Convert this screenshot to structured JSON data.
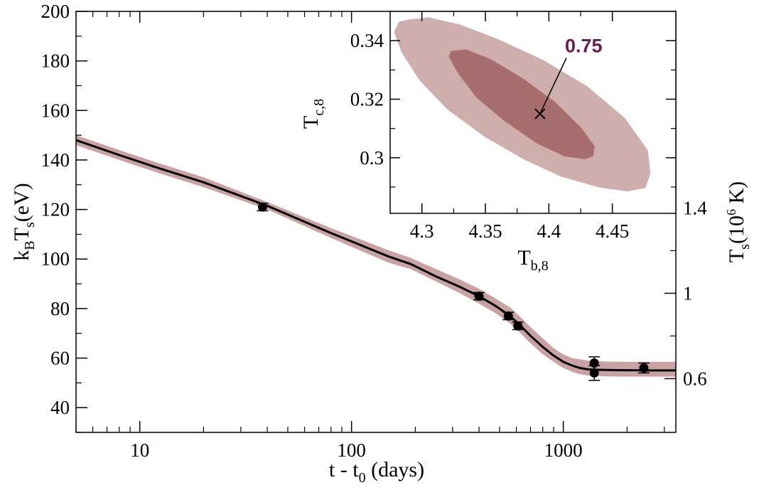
{
  "chart_data": [
    {
      "type": "line",
      "x_scale": "log",
      "xlim": [
        5,
        3400
      ],
      "ylim": [
        30,
        200
      ],
      "grid": false,
      "xlabel": {
        "main": "t - t",
        "sub": "0",
        "tail": " (days)"
      },
      "ylabel": {
        "k": "k",
        "k_sub": "B",
        "t": "T",
        "t_sub": "s",
        "tail": "(eV)"
      },
      "y2label": {
        "t": "T",
        "t_sub": "s",
        "open": "(10",
        "sup": "6",
        "tail": " K)"
      },
      "x_ticks": [
        10,
        100,
        1000
      ],
      "x_tick_labels": [
        "10",
        "100",
        "1000"
      ],
      "y_ticks": [
        40,
        60,
        80,
        100,
        120,
        140,
        160,
        180,
        200
      ],
      "y_tick_labels": [
        "40",
        "60",
        "80",
        "100",
        "120",
        "140",
        "160",
        "180",
        "200"
      ],
      "y2_ticks_keV": [
        51.7,
        86.17,
        120.6
      ],
      "y2_tick_labels": [
        "0.6",
        "1",
        "1.4"
      ],
      "colors": {
        "band": "#c9a3a3",
        "line": "#000000",
        "points": "#000000"
      },
      "model_curve": {
        "x": [
          5,
          8,
          12,
          20,
          40,
          80,
          150,
          190,
          250,
          320,
          400,
          480,
          560,
          620,
          700,
          800,
          900,
          1000,
          1100,
          1200,
          1300,
          1400,
          1600,
          2000,
          2500,
          3400
        ],
        "y": [
          148,
          142,
          137,
          131,
          121.5,
          110.5,
          101,
          98,
          93,
          89,
          85,
          81,
          77,
          73.5,
          69,
          64.5,
          61,
          58.5,
          57,
          56,
          55.5,
          55.3,
          55.2,
          55.1,
          55,
          55
        ],
        "band_upper": [
          150,
          144,
          139,
          133,
          123,
          112.5,
          103.5,
          100.5,
          96,
          92,
          88,
          84,
          80.5,
          77,
          72.5,
          68,
          64,
          61.5,
          60,
          59.5,
          59,
          58.8,
          58.6,
          58.5,
          58.5,
          58.5
        ],
        "band_lower": [
          146,
          140,
          135,
          129,
          120,
          108.5,
          98.5,
          96,
          91,
          86.5,
          82,
          78,
          74,
          70.5,
          66,
          61.5,
          58.5,
          56,
          54.5,
          53.5,
          53,
          52.8,
          52.6,
          52.5,
          52.5,
          52.5
        ]
      },
      "observations": {
        "x": [
          38,
          400,
          550,
          610,
          1400,
          1400,
          2400
        ],
        "y": [
          121,
          85,
          77,
          73,
          58,
          54,
          56
        ],
        "err": [
          1.5,
          1.5,
          1.5,
          1.5,
          2.5,
          3,
          2
        ]
      }
    },
    {
      "type": "contour",
      "xlabel": {
        "main": "T",
        "sub": "b,8"
      },
      "ylabel": {
        "main": "T",
        "sub": "c,8"
      },
      "xlim": [
        4.275,
        4.5
      ],
      "ylim": [
        0.281,
        0.35
      ],
      "x_ticks": [
        4.3,
        4.35,
        4.4,
        4.45
      ],
      "x_tick_labels": [
        "4.3",
        "4.35",
        "4.4",
        "4.45"
      ],
      "y_ticks": [
        0.3,
        0.32,
        0.34
      ],
      "y_tick_labels": [
        "0.3",
        "0.32",
        "0.34"
      ],
      "best_fit": {
        "x": 4.393,
        "y": 0.315
      },
      "annotation": {
        "text": "0.75",
        "x": 4.425,
        "y": 0.337,
        "color": "#6b1d4f"
      },
      "regions": [
        {
          "level": "outer",
          "color": "#cfaeae",
          "x": [
            4.29,
            4.305,
            4.33,
            4.36,
            4.395,
            4.43,
            4.46,
            4.478,
            4.48,
            4.476,
            4.462,
            4.44,
            4.41,
            4.38,
            4.35,
            4.32,
            4.298,
            4.284,
            4.278,
            4.282
          ],
          "y": [
            0.3472,
            0.348,
            0.3455,
            0.3405,
            0.3335,
            0.3245,
            0.3135,
            0.3025,
            0.2945,
            0.2897,
            0.2885,
            0.2898,
            0.2935,
            0.2995,
            0.307,
            0.3165,
            0.3265,
            0.336,
            0.343,
            0.3465
          ]
        },
        {
          "level": "inner",
          "color": "#a86e6e",
          "x": [
            4.323,
            4.335,
            4.355,
            4.38,
            4.405,
            4.425,
            4.436,
            4.435,
            4.428,
            4.412,
            4.39,
            4.365,
            4.343,
            4.329,
            4.321
          ],
          "y": [
            0.3365,
            0.337,
            0.3335,
            0.327,
            0.319,
            0.3105,
            0.304,
            0.3005,
            0.2995,
            0.3005,
            0.305,
            0.3125,
            0.3205,
            0.3285,
            0.3345
          ]
        }
      ]
    }
  ]
}
